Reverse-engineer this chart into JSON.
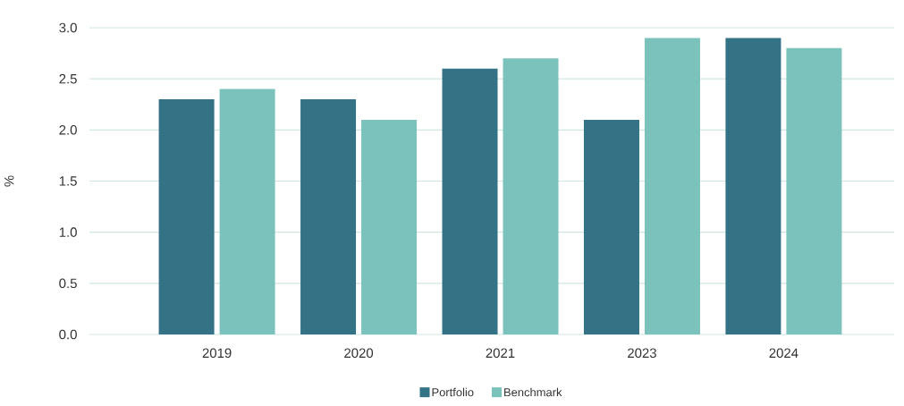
{
  "chart_data": {
    "type": "bar",
    "ylabel": "%",
    "categories": [
      "2019",
      "2020",
      "2021",
      "2023",
      "2024"
    ],
    "series": [
      {
        "name": "Portfolio",
        "color": "#337385",
        "values": [
          2.3,
          2.3,
          2.6,
          2.1,
          2.9
        ]
      },
      {
        "name": "Benchmark",
        "color": "#7bc2bd",
        "values": [
          2.4,
          2.1,
          2.7,
          2.9,
          2.8
        ]
      }
    ],
    "ylim": [
      0,
      3
    ],
    "yticks": [
      {
        "value": 0,
        "label": "0.0"
      },
      {
        "value": 0.5,
        "label": "0.5"
      },
      {
        "value": 1,
        "label": "1.0"
      },
      {
        "value": 1.5,
        "label": "1.5"
      },
      {
        "value": 2,
        "label": "2.0"
      },
      {
        "value": 2.5,
        "label": "2.5"
      },
      {
        "value": 3,
        "label": "3.0"
      }
    ],
    "grid": "y",
    "legend": "bottom"
  }
}
